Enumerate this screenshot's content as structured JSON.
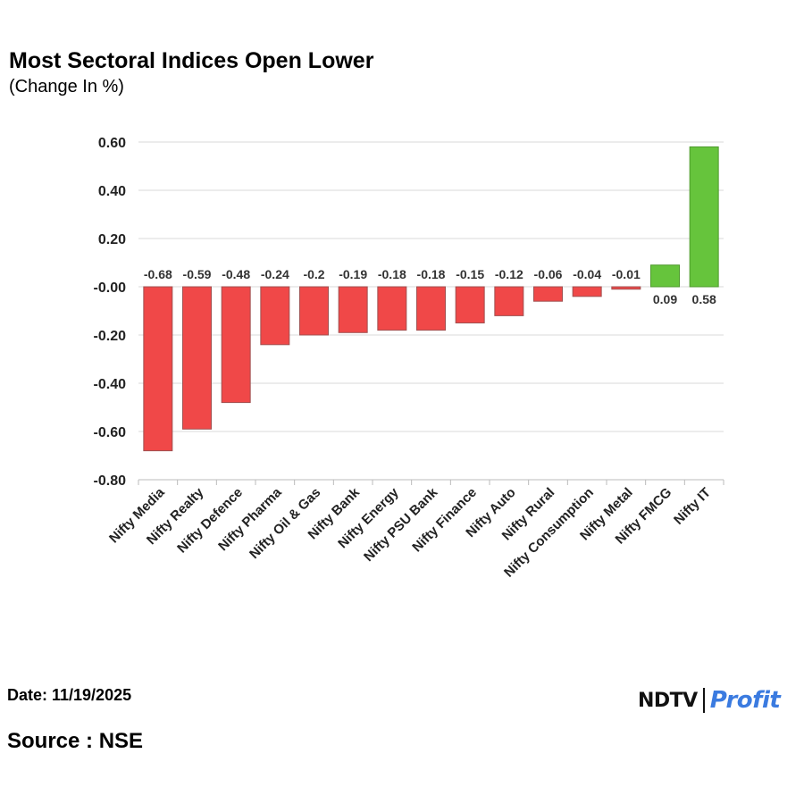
{
  "chart_data": {
    "type": "bar",
    "title": "Most Sectoral Indices Open Lower",
    "subtitle": "(Change In %)",
    "categories": [
      "Nifty Media",
      "Nifty Realty",
      "Nifty Defence",
      "Nifty Pharma",
      "Nifty Oil & Gas",
      "Nifty Bank",
      "Nifty Energy",
      "Nifty PSU Bank",
      "Nifty Finance",
      "Nifty Auto",
      "Nifty Rural",
      "Nifty Consumption",
      "Nifty Metal",
      "Nifty FMCG",
      "Nifty IT"
    ],
    "values": [
      -0.68,
      -0.59,
      -0.48,
      -0.24,
      -0.2,
      -0.19,
      -0.18,
      -0.18,
      -0.15,
      -0.12,
      -0.06,
      -0.04,
      -0.01,
      0.09,
      0.58
    ],
    "value_labels": [
      "-0.68",
      "-0.59",
      "-0.48",
      "-0.24",
      "-0.2",
      "-0.19",
      "-0.18",
      "-0.18",
      "-0.15",
      "-0.12",
      "-0.06",
      "-0.04",
      "-0.01",
      "0.09",
      "0.58"
    ],
    "ylim": [
      -0.8,
      0.6
    ],
    "yticks": [
      0.6,
      0.4,
      0.2,
      0.0,
      -0.2,
      -0.4,
      -0.6,
      -0.8
    ],
    "ytick_labels": [
      "0.60",
      "0.40",
      "0.20",
      "-0.00",
      "-0.20",
      "-0.40",
      "-0.60",
      "-0.80"
    ],
    "xlabel": "",
    "ylabel": "",
    "grid": true,
    "legend": "none",
    "colors": {
      "negative": "#f04848",
      "negative_edge": "#a05050",
      "positive": "#66c43c",
      "positive_edge": "#4f9a2e"
    }
  },
  "footer": {
    "date": "Date: 11/19/2025",
    "source": "Source : NSE"
  },
  "logo": {
    "ndtv": "NDTV",
    "profit": "Profit"
  }
}
